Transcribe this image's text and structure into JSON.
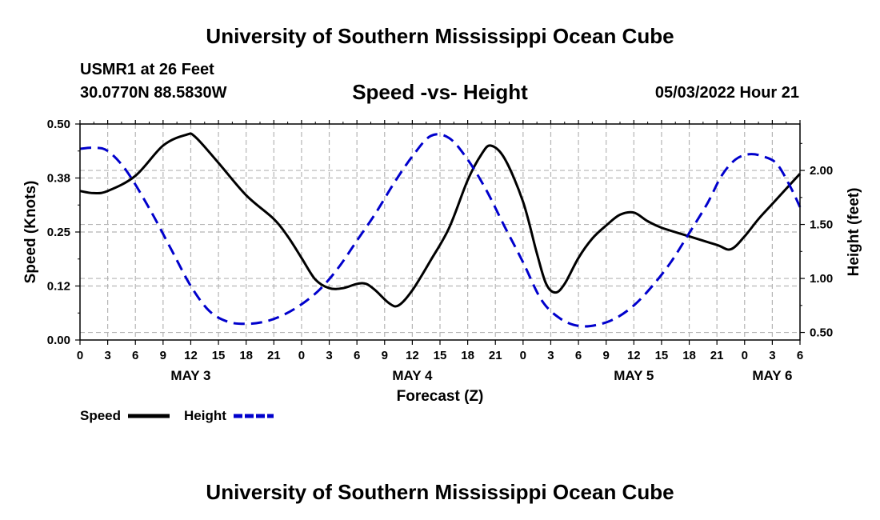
{
  "header": {
    "title": "University of Southern Mississippi Ocean Cube",
    "station": "USMR1 at 26 Feet",
    "coordinates": "30.0770N  88.5830W",
    "datetime": "05/03/2022 Hour 21"
  },
  "footer": {
    "title": "University of Southern Mississippi Ocean Cube"
  },
  "chart_data": {
    "type": "line",
    "title": "Speed -vs- Height",
    "xlabel": "Forecast (Z)",
    "ylabel": "Speed (Knots)",
    "y2label": "Height (feet)",
    "x_unit": "hours from May 3 00Z",
    "xlim": [
      0,
      78
    ],
    "ylim": [
      0,
      0.5
    ],
    "y2lim": [
      0.43,
      2.43
    ],
    "y_ticks": [
      {
        "value": 0.0,
        "label": "0.00"
      },
      {
        "value": 0.125,
        "label": "0.12"
      },
      {
        "value": 0.25,
        "label": "0.25"
      },
      {
        "value": 0.375,
        "label": "0.38"
      },
      {
        "value": 0.5,
        "label": "0.50"
      }
    ],
    "y2_ticks": [
      {
        "value": 0.5,
        "label": "0.50"
      },
      {
        "value": 1.0,
        "label": "1.00"
      },
      {
        "value": 1.5,
        "label": "1.50"
      },
      {
        "value": 2.0,
        "label": "2.00"
      }
    ],
    "x_ticks": [
      {
        "value": 0,
        "label": "0"
      },
      {
        "value": 3,
        "label": "3"
      },
      {
        "value": 6,
        "label": "6"
      },
      {
        "value": 9,
        "label": "9"
      },
      {
        "value": 12,
        "label": "12"
      },
      {
        "value": 15,
        "label": "15"
      },
      {
        "value": 18,
        "label": "18"
      },
      {
        "value": 21,
        "label": "21"
      },
      {
        "value": 24,
        "label": "0"
      },
      {
        "value": 27,
        "label": "3"
      },
      {
        "value": 30,
        "label": "6"
      },
      {
        "value": 33,
        "label": "9"
      },
      {
        "value": 36,
        "label": "12"
      },
      {
        "value": 39,
        "label": "15"
      },
      {
        "value": 42,
        "label": "18"
      },
      {
        "value": 45,
        "label": "21"
      },
      {
        "value": 48,
        "label": "0"
      },
      {
        "value": 51,
        "label": "3"
      },
      {
        "value": 54,
        "label": "6"
      },
      {
        "value": 57,
        "label": "9"
      },
      {
        "value": 60,
        "label": "12"
      },
      {
        "value": 63,
        "label": "15"
      },
      {
        "value": 66,
        "label": "18"
      },
      {
        "value": 69,
        "label": "21"
      },
      {
        "value": 72,
        "label": "0"
      },
      {
        "value": 75,
        "label": "3"
      },
      {
        "value": 78,
        "label": "6"
      }
    ],
    "day_labels": [
      {
        "value": 12,
        "label": "MAY 3"
      },
      {
        "value": 36,
        "label": "MAY 4"
      },
      {
        "value": 60,
        "label": "MAY 5"
      },
      {
        "value": 75,
        "label": "MAY 6"
      }
    ],
    "grid": true,
    "legend_position": "bottom-left",
    "series": [
      {
        "name": "Speed",
        "axis": "left",
        "color": "#000000",
        "style": "solid",
        "points": [
          [
            0,
            0.345
          ],
          [
            1.5,
            0.34
          ],
          [
            3,
            0.345
          ],
          [
            6,
            0.38
          ],
          [
            9,
            0.45
          ],
          [
            11.5,
            0.475
          ],
          [
            12.5,
            0.47
          ],
          [
            15,
            0.41
          ],
          [
            18,
            0.335
          ],
          [
            21,
            0.28
          ],
          [
            22.5,
            0.24
          ],
          [
            24,
            0.19
          ],
          [
            25.5,
            0.14
          ],
          [
            27,
            0.12
          ],
          [
            28.5,
            0.12
          ],
          [
            30,
            0.13
          ],
          [
            31,
            0.13
          ],
          [
            32,
            0.115
          ],
          [
            33.5,
            0.085
          ],
          [
            34.5,
            0.08
          ],
          [
            36,
            0.115
          ],
          [
            38,
            0.185
          ],
          [
            40,
            0.26
          ],
          [
            42,
            0.37
          ],
          [
            43.5,
            0.43
          ],
          [
            44.5,
            0.45
          ],
          [
            46,
            0.42
          ],
          [
            48,
            0.32
          ],
          [
            49.5,
            0.2
          ],
          [
            50.5,
            0.13
          ],
          [
            51.5,
            0.11
          ],
          [
            52.5,
            0.13
          ],
          [
            54,
            0.19
          ],
          [
            55.5,
            0.235
          ],
          [
            57,
            0.265
          ],
          [
            58.5,
            0.29
          ],
          [
            60,
            0.295
          ],
          [
            61.5,
            0.275
          ],
          [
            63,
            0.26
          ],
          [
            66,
            0.24
          ],
          [
            69,
            0.22
          ],
          [
            70.5,
            0.21
          ],
          [
            72,
            0.24
          ],
          [
            73.5,
            0.28
          ],
          [
            75,
            0.315
          ],
          [
            78,
            0.385
          ]
        ]
      },
      {
        "name": "Height",
        "axis": "right",
        "color": "#0000cc",
        "style": "dashed",
        "points": [
          [
            0,
            2.2
          ],
          [
            1.5,
            2.21
          ],
          [
            3,
            2.18
          ],
          [
            5,
            2.0
          ],
          [
            7.5,
            1.65
          ],
          [
            10,
            1.25
          ],
          [
            12,
            0.93
          ],
          [
            14,
            0.7
          ],
          [
            16,
            0.6
          ],
          [
            18,
            0.58
          ],
          [
            20,
            0.6
          ],
          [
            22,
            0.66
          ],
          [
            24,
            0.76
          ],
          [
            26,
            0.9
          ],
          [
            28,
            1.1
          ],
          [
            30,
            1.35
          ],
          [
            32,
            1.6
          ],
          [
            34,
            1.88
          ],
          [
            36,
            2.13
          ],
          [
            38,
            2.32
          ],
          [
            40,
            2.3
          ],
          [
            42,
            2.1
          ],
          [
            44,
            1.82
          ],
          [
            46,
            1.48
          ],
          [
            48,
            1.15
          ],
          [
            50,
            0.8
          ],
          [
            52,
            0.63
          ],
          [
            54,
            0.56
          ],
          [
            56,
            0.57
          ],
          [
            58,
            0.63
          ],
          [
            60,
            0.75
          ],
          [
            62,
            0.93
          ],
          [
            64,
            1.15
          ],
          [
            66,
            1.42
          ],
          [
            68,
            1.7
          ],
          [
            69.5,
            1.95
          ],
          [
            71,
            2.1
          ],
          [
            72.5,
            2.15
          ],
          [
            74,
            2.13
          ],
          [
            75.5,
            2.06
          ],
          [
            77,
            1.84
          ],
          [
            78,
            1.66
          ]
        ]
      }
    ]
  }
}
